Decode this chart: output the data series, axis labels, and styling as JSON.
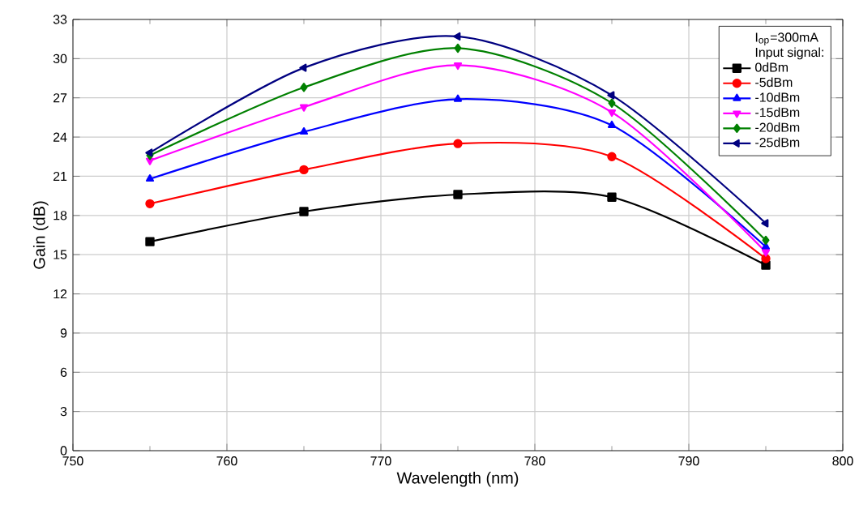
{
  "chart_data": {
    "type": "line",
    "xlabel": "Wavelength (nm)",
    "ylabel": "Gain (dB)",
    "legend_title": "I$_{op}$=300mA",
    "annotations": [
      "Input signal:"
    ],
    "x": [
      755,
      765,
      775,
      785,
      795
    ],
    "series": [
      {
        "name": "0dBm",
        "color": "#000000",
        "marker": "square",
        "values": [
          16.0,
          18.3,
          19.6,
          19.4,
          14.2
        ]
      },
      {
        "name": "-5dBm",
        "color": "#ff0000",
        "marker": "circle",
        "values": [
          18.9,
          21.5,
          23.5,
          22.5,
          14.7
        ]
      },
      {
        "name": "-10dBm",
        "color": "#0000ff",
        "marker": "triangle",
        "values": [
          20.8,
          24.4,
          26.9,
          24.9,
          15.6
        ]
      },
      {
        "name": "-15dBm",
        "color": "#ff00ff",
        "marker": "triangle-down",
        "values": [
          22.2,
          26.3,
          29.5,
          25.9,
          15.2
        ]
      },
      {
        "name": "-20dBm",
        "color": "#008000",
        "marker": "diamond",
        "values": [
          22.6,
          27.8,
          30.8,
          26.6,
          16.1
        ]
      },
      {
        "name": "-25dBm",
        "color": "#000080",
        "marker": "triangle-left",
        "values": [
          22.8,
          29.3,
          31.7,
          27.2,
          17.4
        ]
      }
    ],
    "xlim": [
      750,
      800
    ],
    "xticks": [
      750,
      760,
      770,
      780,
      790,
      800
    ],
    "ylim": [
      0,
      33
    ],
    "yticks": [
      0,
      3,
      6,
      9,
      12,
      15,
      18,
      21,
      24,
      27,
      30,
      33
    ],
    "grid": true,
    "legend": "top right",
    "line_style": "solid"
  }
}
